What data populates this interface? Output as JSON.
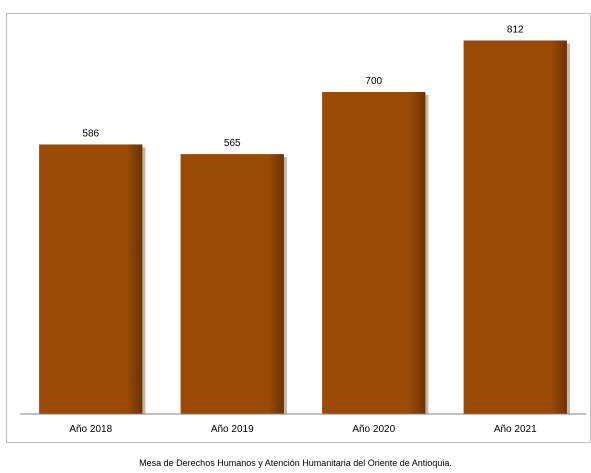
{
  "chart_data": {
    "type": "bar",
    "categories": [
      "Año 2018",
      "Año 2019",
      "Año 2020",
      "Año 2021"
    ],
    "values": [
      586,
      565,
      700,
      812
    ],
    "title": "",
    "xlabel": "",
    "ylabel": "",
    "ylim": [
      0,
      900
    ],
    "grid": false,
    "legend": "none",
    "bar_color": "#994a05",
    "bar_shadow_color": "#5a2a00",
    "data_labels": [
      "586",
      "565",
      "700",
      "812"
    ]
  },
  "source_text": "Mesa de Derechos Humanos y Atención Humanitaria del Oriente de Antioquia."
}
